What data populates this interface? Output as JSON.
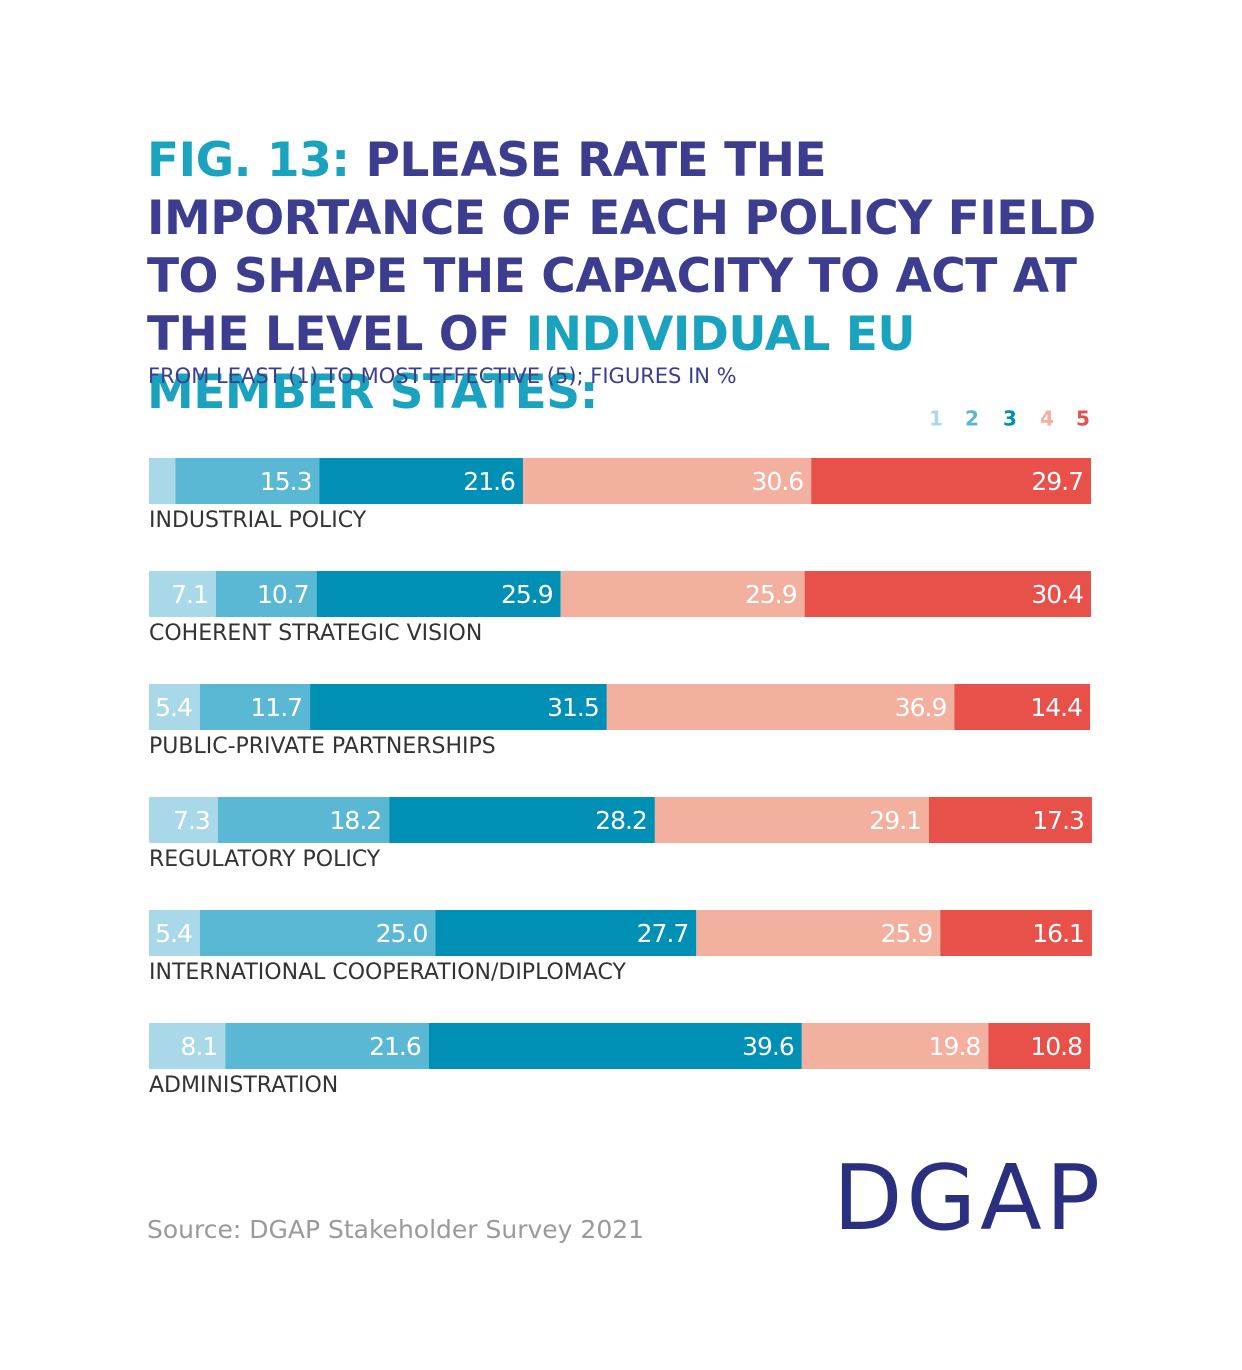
{
  "chart_data": {
    "type": "stacked-bar-horizontal",
    "title": [
      "FIG. 13:",
      "PLEASE RATE THE IMPORTANCE OF EACH POLICY FIELD TO SHAPE THE CAPACITY TO ACT AT THE LEVEL OF",
      "INDIVIDUAL EU MEMBER STATES:"
    ],
    "subtitle": "FROM LEAST (1) TO MOST EFFECTIVE (5); FIGURES IN %",
    "categories": [
      "INDUSTRIAL POLICY",
      "COHERENT STRATEGIC VISION",
      "PUBLIC-PRIVATE PARTNERSHIPS",
      "REGULATORY POLICY",
      "INTERNATIONAL COOPERATION/DIPLOMACY",
      "ADMINISTRATION"
    ],
    "xlim": [
      0,
      100
    ],
    "series": [
      {
        "name": "1",
        "color": "#a9d8e8",
        "values": [
          2.8,
          7.1,
          5.4,
          7.3,
          5.4,
          8.1
        ],
        "value_labels": [
          null,
          "7.1",
          "5.4",
          "7.3",
          "5.4",
          "8.1"
        ]
      },
      {
        "name": "2",
        "color": "#5bb8d4",
        "values": [
          15.3,
          10.7,
          11.7,
          18.2,
          25.0,
          21.6
        ],
        "value_labels": [
          "15.3",
          "10.7",
          "11.7",
          "18.2",
          "25.0",
          "21.6"
        ]
      },
      {
        "name": "3",
        "color": "#0090b5",
        "values": [
          21.6,
          25.9,
          31.5,
          28.2,
          27.7,
          39.6
        ]
      },
      {
        "name": "4",
        "color": "#f4b09e",
        "values": [
          30.6,
          25.9,
          36.9,
          29.1,
          25.9,
          19.8
        ]
      },
      {
        "name": "5",
        "color": "#e8504a",
        "values": [
          29.7,
          30.4,
          14.4,
          17.3,
          16.1,
          10.8
        ]
      }
    ],
    "source": "Source: DGAP Stakeholder Survey 2021",
    "logo": "DGAP"
  }
}
